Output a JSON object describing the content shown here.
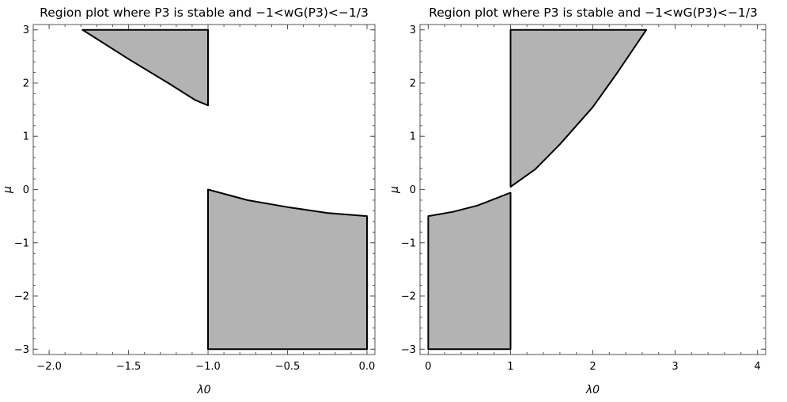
{
  "chart_data": [
    {
      "type": "region",
      "title": "Region plot where P3 is stable and −1<wG(P3)<−1/3",
      "xlabel": "λ0",
      "ylabel": "μ",
      "xlim": [
        -2.1,
        0.05
      ],
      "ylim": [
        -3.1,
        3.1
      ],
      "xticks": [
        -2.0,
        -1.5,
        -1.0,
        -0.5,
        0.0
      ],
      "xticklabels": [
        "−2.0",
        "−1.5",
        "−1.0",
        "−0.5",
        "0.0"
      ],
      "xminor_step": 0.1,
      "yticks": [
        -3,
        -2,
        -1,
        0,
        1,
        2,
        3
      ],
      "yticklabels": [
        "−3",
        "−2",
        "−1",
        "0",
        "1",
        "2",
        "3"
      ],
      "yminor_step": 0.2,
      "fill_color": "#b3b3b3",
      "regions": [
        {
          "points": [
            [
              -1.79,
              3.0
            ],
            [
              -1.5,
              2.45
            ],
            [
              -1.25,
              2.0
            ],
            [
              -1.08,
              1.68
            ],
            [
              -1.0,
              1.58
            ],
            [
              -1.0,
              3.0
            ]
          ]
        },
        {
          "points": [
            [
              -1.0,
              0.0
            ],
            [
              -0.75,
              -0.2
            ],
            [
              -0.5,
              -0.33
            ],
            [
              -0.25,
              -0.44
            ],
            [
              0.0,
              -0.5
            ],
            [
              0.0,
              -3.0
            ],
            [
              -1.0,
              -3.0
            ]
          ]
        }
      ]
    },
    {
      "type": "region",
      "title": "Region plot where P3 is stable and −1<wG(P3)<−1/3",
      "xlabel": "λ0",
      "ylabel": "μ",
      "xlim": [
        -0.1,
        4.1
      ],
      "ylim": [
        -3.1,
        3.1
      ],
      "xticks": [
        0,
        1,
        2,
        3,
        4
      ],
      "xticklabels": [
        "0",
        "1",
        "2",
        "3",
        "4"
      ],
      "xminor_step": 0.2,
      "yticks": [
        -3,
        -2,
        -1,
        0,
        1,
        2,
        3
      ],
      "yticklabels": [
        "−3",
        "−2",
        "−1",
        "0",
        "1",
        "2",
        "3"
      ],
      "yminor_step": 0.2,
      "fill_color": "#b3b3b3",
      "regions": [
        {
          "points": [
            [
              1.0,
              3.0
            ],
            [
              2.65,
              3.0
            ],
            [
              2.3,
              2.2
            ],
            [
              2.0,
              1.55
            ],
            [
              1.6,
              0.85
            ],
            [
              1.3,
              0.38
            ],
            [
              1.0,
              0.05
            ]
          ]
        },
        {
          "points": [
            [
              0.0,
              -0.5
            ],
            [
              0.3,
              -0.42
            ],
            [
              0.6,
              -0.3
            ],
            [
              1.0,
              -0.06
            ],
            [
              1.0,
              -3.0
            ],
            [
              0.0,
              -3.0
            ]
          ]
        }
      ]
    }
  ]
}
